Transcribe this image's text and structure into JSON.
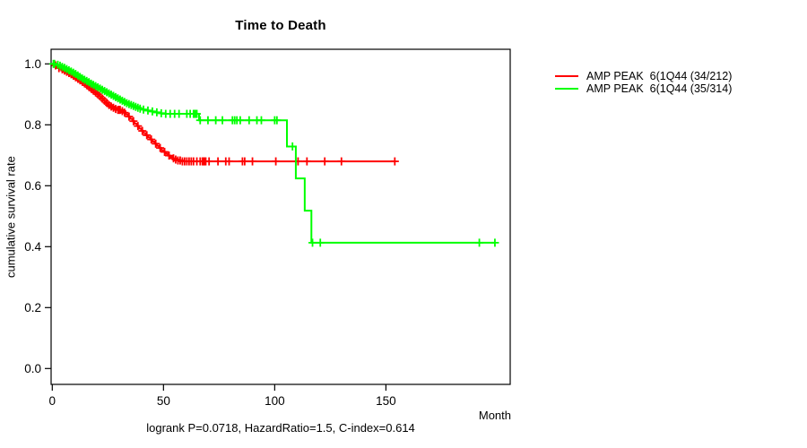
{
  "chart_data": {
    "type": "line",
    "subtype": "kaplan-meier-step-curves",
    "title": "Time to Death",
    "xlabel": "Month",
    "ylabel": "cumulative survival rate",
    "footnote": "logrank P=0.0718, HazardRatio=1.5, C-index=0.614",
    "grid": false,
    "legend_position": "right-outside-top",
    "x_axis": {
      "ticks": [
        {
          "value": 0,
          "label": "0"
        },
        {
          "value": 50,
          "label": "50"
        },
        {
          "value": 100,
          "label": "100"
        },
        {
          "value": 150,
          "label": "150"
        }
      ],
      "xlim": [
        0,
        206
      ]
    },
    "y_axis": {
      "ticks": [
        {
          "value": 0.0,
          "label": "0.0"
        },
        {
          "value": 0.2,
          "label": "0.2"
        },
        {
          "value": 0.4,
          "label": "0.4"
        },
        {
          "value": 0.6,
          "label": "0.6"
        },
        {
          "value": 0.8,
          "label": "0.8"
        },
        {
          "value": 1.0,
          "label": "1.0"
        }
      ],
      "ylim": [
        0,
        1
      ]
    },
    "series": [
      {
        "name": "AMP PEAK  6(1Q44 (34/212)",
        "color": "#ff0000",
        "end_time": 154,
        "steps": [
          [
            0,
            1
          ],
          [
            1,
            0.995
          ],
          [
            2,
            0.99
          ],
          [
            3,
            0.986
          ],
          [
            4,
            0.982
          ],
          [
            5,
            0.978
          ],
          [
            6,
            0.974
          ],
          [
            7,
            0.97
          ],
          [
            8,
            0.966
          ],
          [
            9,
            0.961
          ],
          [
            10,
            0.956
          ],
          [
            11,
            0.951
          ],
          [
            12,
            0.946
          ],
          [
            13,
            0.941
          ],
          [
            14,
            0.936
          ],
          [
            15,
            0.93
          ],
          [
            16,
            0.924
          ],
          [
            17,
            0.918
          ],
          [
            18,
            0.912
          ],
          [
            19,
            0.906
          ],
          [
            20,
            0.9
          ],
          [
            21,
            0.893
          ],
          [
            22,
            0.886
          ],
          [
            23,
            0.879
          ],
          [
            24,
            0.872
          ],
          [
            25,
            0.865
          ],
          [
            26,
            0.86
          ],
          [
            27,
            0.856
          ],
          [
            28,
            0.852
          ],
          [
            29,
            0.849
          ],
          [
            31,
            0.845
          ],
          [
            32,
            0.84
          ],
          [
            33,
            0.834
          ],
          [
            34,
            0.827
          ],
          [
            35,
            0.82
          ],
          [
            36,
            0.812
          ],
          [
            37,
            0.804
          ],
          [
            38,
            0.796
          ],
          [
            39,
            0.788
          ],
          [
            40,
            0.78
          ],
          [
            41,
            0.773
          ],
          [
            42,
            0.766
          ],
          [
            43,
            0.759
          ],
          [
            44,
            0.752
          ],
          [
            45,
            0.745
          ],
          [
            46,
            0.738
          ],
          [
            47,
            0.731
          ],
          [
            48,
            0.724
          ],
          [
            49,
            0.717
          ],
          [
            50,
            0.711
          ],
          [
            51,
            0.705
          ],
          [
            52,
            0.699
          ],
          [
            53,
            0.694
          ],
          [
            54,
            0.69
          ],
          [
            55,
            0.686
          ],
          [
            56,
            0.683
          ],
          [
            58,
            0.68
          ]
        ],
        "censor_times": [
          1.5,
          3,
          4.5,
          5.5,
          6.5,
          7.5,
          8.5,
          9.5,
          10.5,
          11.5,
          12.5,
          13.5,
          14.5,
          15.5,
          16.5,
          17.5,
          18.5,
          19.5,
          20.5,
          21.5,
          22.5,
          23.5,
          24.5,
          25.5,
          26.5,
          27.5,
          28.5,
          29.5,
          30,
          30.5,
          31.5,
          32.5,
          34.5,
          36.5,
          38.5,
          40.5,
          42.5,
          44.5,
          46.5,
          48.5,
          50.5,
          52.5,
          54.5,
          55.5,
          56.5,
          57.5,
          58.5,
          59.5,
          60.5,
          61.5,
          62.5,
          63.5,
          65,
          66.5,
          67.5,
          68,
          68.5,
          69,
          70.5,
          74.5,
          78,
          79.5,
          85.5,
          86.5,
          90,
          100.5,
          110.5,
          114.5,
          122.5,
          130,
          154
        ]
      },
      {
        "name": "AMP PEAK  6(1Q44 (35/314)",
        "color": "#00ff00",
        "end_time": 199,
        "steps": [
          [
            0,
            1
          ],
          [
            2,
            0.997
          ],
          [
            3,
            0.994
          ],
          [
            4,
            0.99
          ],
          [
            5,
            0.987
          ],
          [
            6,
            0.983
          ],
          [
            7,
            0.979
          ],
          [
            8,
            0.975
          ],
          [
            9,
            0.971
          ],
          [
            10,
            0.967
          ],
          [
            11,
            0.962
          ],
          [
            12,
            0.957
          ],
          [
            13,
            0.952
          ],
          [
            14,
            0.948
          ],
          [
            15,
            0.944
          ],
          [
            16,
            0.94
          ],
          [
            17,
            0.935
          ],
          [
            18,
            0.931
          ],
          [
            19,
            0.927
          ],
          [
            20,
            0.923
          ],
          [
            21,
            0.919
          ],
          [
            22,
            0.915
          ],
          [
            23,
            0.911
          ],
          [
            24,
            0.907
          ],
          [
            25,
            0.903
          ],
          [
            26,
            0.899
          ],
          [
            27,
            0.895
          ],
          [
            28,
            0.891
          ],
          [
            29,
            0.887
          ],
          [
            30,
            0.883
          ],
          [
            31,
            0.879
          ],
          [
            32,
            0.875
          ],
          [
            33,
            0.871
          ],
          [
            34,
            0.868
          ],
          [
            35,
            0.865
          ],
          [
            36,
            0.862
          ],
          [
            37,
            0.859
          ],
          [
            38,
            0.856
          ],
          [
            39,
            0.853
          ],
          [
            40,
            0.85
          ],
          [
            42,
            0.847
          ],
          [
            44,
            0.844
          ],
          [
            46,
            0.841
          ],
          [
            48,
            0.838
          ],
          [
            50,
            0.836
          ],
          [
            66,
            0.815
          ],
          [
            105.5,
            0.729
          ],
          [
            109.5,
            0.624
          ],
          [
            113.5,
            0.518
          ],
          [
            116.5,
            0.413
          ]
        ],
        "censor_times": [
          0.5,
          1,
          2.5,
          3.5,
          4.5,
          5.5,
          6.5,
          7.5,
          8.5,
          9.5,
          10.5,
          11.5,
          12.5,
          13.5,
          14.5,
          15.5,
          16.5,
          17.5,
          18.5,
          19.5,
          20.5,
          21.5,
          22.5,
          23.5,
          24.5,
          25.5,
          26.5,
          27.5,
          28.5,
          29.5,
          30.5,
          31.5,
          32.5,
          33.5,
          34.5,
          35.5,
          36.5,
          37.5,
          38.5,
          39.5,
          41,
          43,
          45,
          47,
          49,
          51,
          53,
          55,
          57,
          60.5,
          62,
          63.5,
          64,
          64.5,
          65,
          66.5,
          70,
          73.5,
          76.5,
          81,
          82,
          83,
          84.5,
          88.5,
          92,
          94,
          100,
          101,
          108,
          117,
          120.5,
          192,
          199
        ]
      }
    ]
  }
}
